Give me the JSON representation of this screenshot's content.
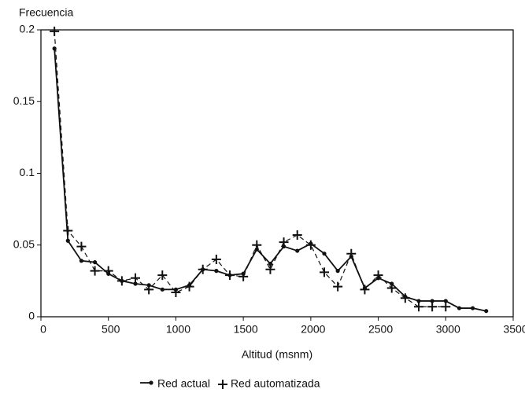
{
  "chart_data": {
    "type": "line",
    "y_label": "Frecuencia",
    "x_label": "Altitud (msnm)",
    "x": [
      100,
      200,
      300,
      400,
      500,
      600,
      700,
      800,
      900,
      1000,
      1100,
      1200,
      1300,
      1400,
      1500,
      1600,
      1700,
      1800,
      1900,
      2000,
      2100,
      2200,
      2300,
      2400,
      2500,
      2600,
      2700,
      2800,
      2900,
      3000,
      3100,
      3200,
      3300
    ],
    "series": [
      {
        "name": "Red actual",
        "color": "#111111",
        "line_style": "solid",
        "marker": "dot",
        "values": [
          0.187,
          0.053,
          0.039,
          0.038,
          0.03,
          0.025,
          0.023,
          0.022,
          0.019,
          0.019,
          0.022,
          0.033,
          0.032,
          0.029,
          0.03,
          0.047,
          0.037,
          0.049,
          0.046,
          0.051,
          0.044,
          0.032,
          0.042,
          0.02,
          0.027,
          0.023,
          0.014,
          0.011,
          0.011,
          0.011,
          0.006,
          0.006,
          0.004
        ]
      },
      {
        "name": "Red automatizada",
        "color": "#111111",
        "line_style": "dashed",
        "marker": "plus",
        "values": [
          0.199,
          0.06,
          0.049,
          0.032,
          0.032,
          0.025,
          0.027,
          0.019,
          0.029,
          0.017,
          0.021,
          0.033,
          0.04,
          0.029,
          0.028,
          0.05,
          0.033,
          0.052,
          0.057,
          0.05,
          0.031,
          0.021,
          0.044,
          0.019,
          0.029,
          0.02,
          0.013,
          0.007,
          0.007,
          0.007,
          null,
          null,
          null
        ]
      }
    ],
    "xlim": [
      0,
      3500
    ],
    "xticks": [
      0,
      500,
      1000,
      1500,
      2000,
      2500,
      3000,
      3500
    ],
    "ylim": [
      0,
      0.2
    ],
    "yticks": [
      0,
      0.05,
      0.1,
      0.15,
      0.2
    ],
    "grid": false,
    "legend": "bottom"
  }
}
